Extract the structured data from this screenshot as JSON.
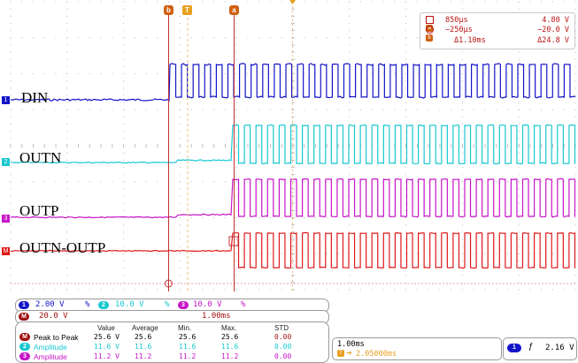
{
  "signals": {
    "din": {
      "label": "DIN",
      "marker": "1",
      "color": "#1414c8"
    },
    "outn": {
      "label": "OUTN",
      "marker": "2",
      "color": "#18c8d0"
    },
    "outp": {
      "label": "OUTP",
      "marker": "3",
      "color": "#c814c8"
    },
    "math": {
      "label": "OUTN-OUTP",
      "marker": "M",
      "color": "#e01818"
    }
  },
  "cursors": {
    "a_marker": "a",
    "b_marker": "b",
    "trigger_marker": "T",
    "a_time": "850µs",
    "a_volt": "4.80 V",
    "b_time": "−250µs",
    "b_volt": "−20.0 V",
    "delta_time": "Δ1.10ms",
    "delta_volt": "Δ24.8 V"
  },
  "scale": {
    "ch1": {
      "badge": "1",
      "value": "2.00 V",
      "coupling": "%"
    },
    "ch2": {
      "badge": "2",
      "value": "10.0 V",
      "coupling": "%"
    },
    "ch3": {
      "badge": "3",
      "value": "10.0 V",
      "coupling": "%"
    },
    "math": {
      "badge": "M",
      "value": "20.0 V"
    },
    "timebase": "1.00ms"
  },
  "measurements": {
    "headers": [
      "Value",
      "Average",
      "Min.",
      "Max.",
      "STD"
    ],
    "rows": [
      {
        "badge": "M",
        "label": "Peak to Peak",
        "value": "25.6 V",
        "average": "25.6",
        "min": "25.6",
        "max": "25.6",
        "std": "0.00",
        "color": "#000000"
      },
      {
        "badge": "2",
        "label": "Amplitude",
        "value": "11.6 V",
        "average": "11.6",
        "min": "11.6",
        "max": "11.6",
        "std": "0.00",
        "color": "#18c8d0"
      },
      {
        "badge": "3",
        "label": "Amplitude",
        "value": "11.2 V",
        "average": "11.2",
        "min": "11.2",
        "max": "11.2",
        "std": "0.00",
        "color": "#c814c8"
      }
    ]
  },
  "horizontal": {
    "scale": "1.00ms",
    "position_prefix": "T",
    "position": "2.05000ms"
  },
  "trigger": {
    "channel": "1",
    "slope_symbol": "ƒ",
    "level": "2.16 V"
  }
}
